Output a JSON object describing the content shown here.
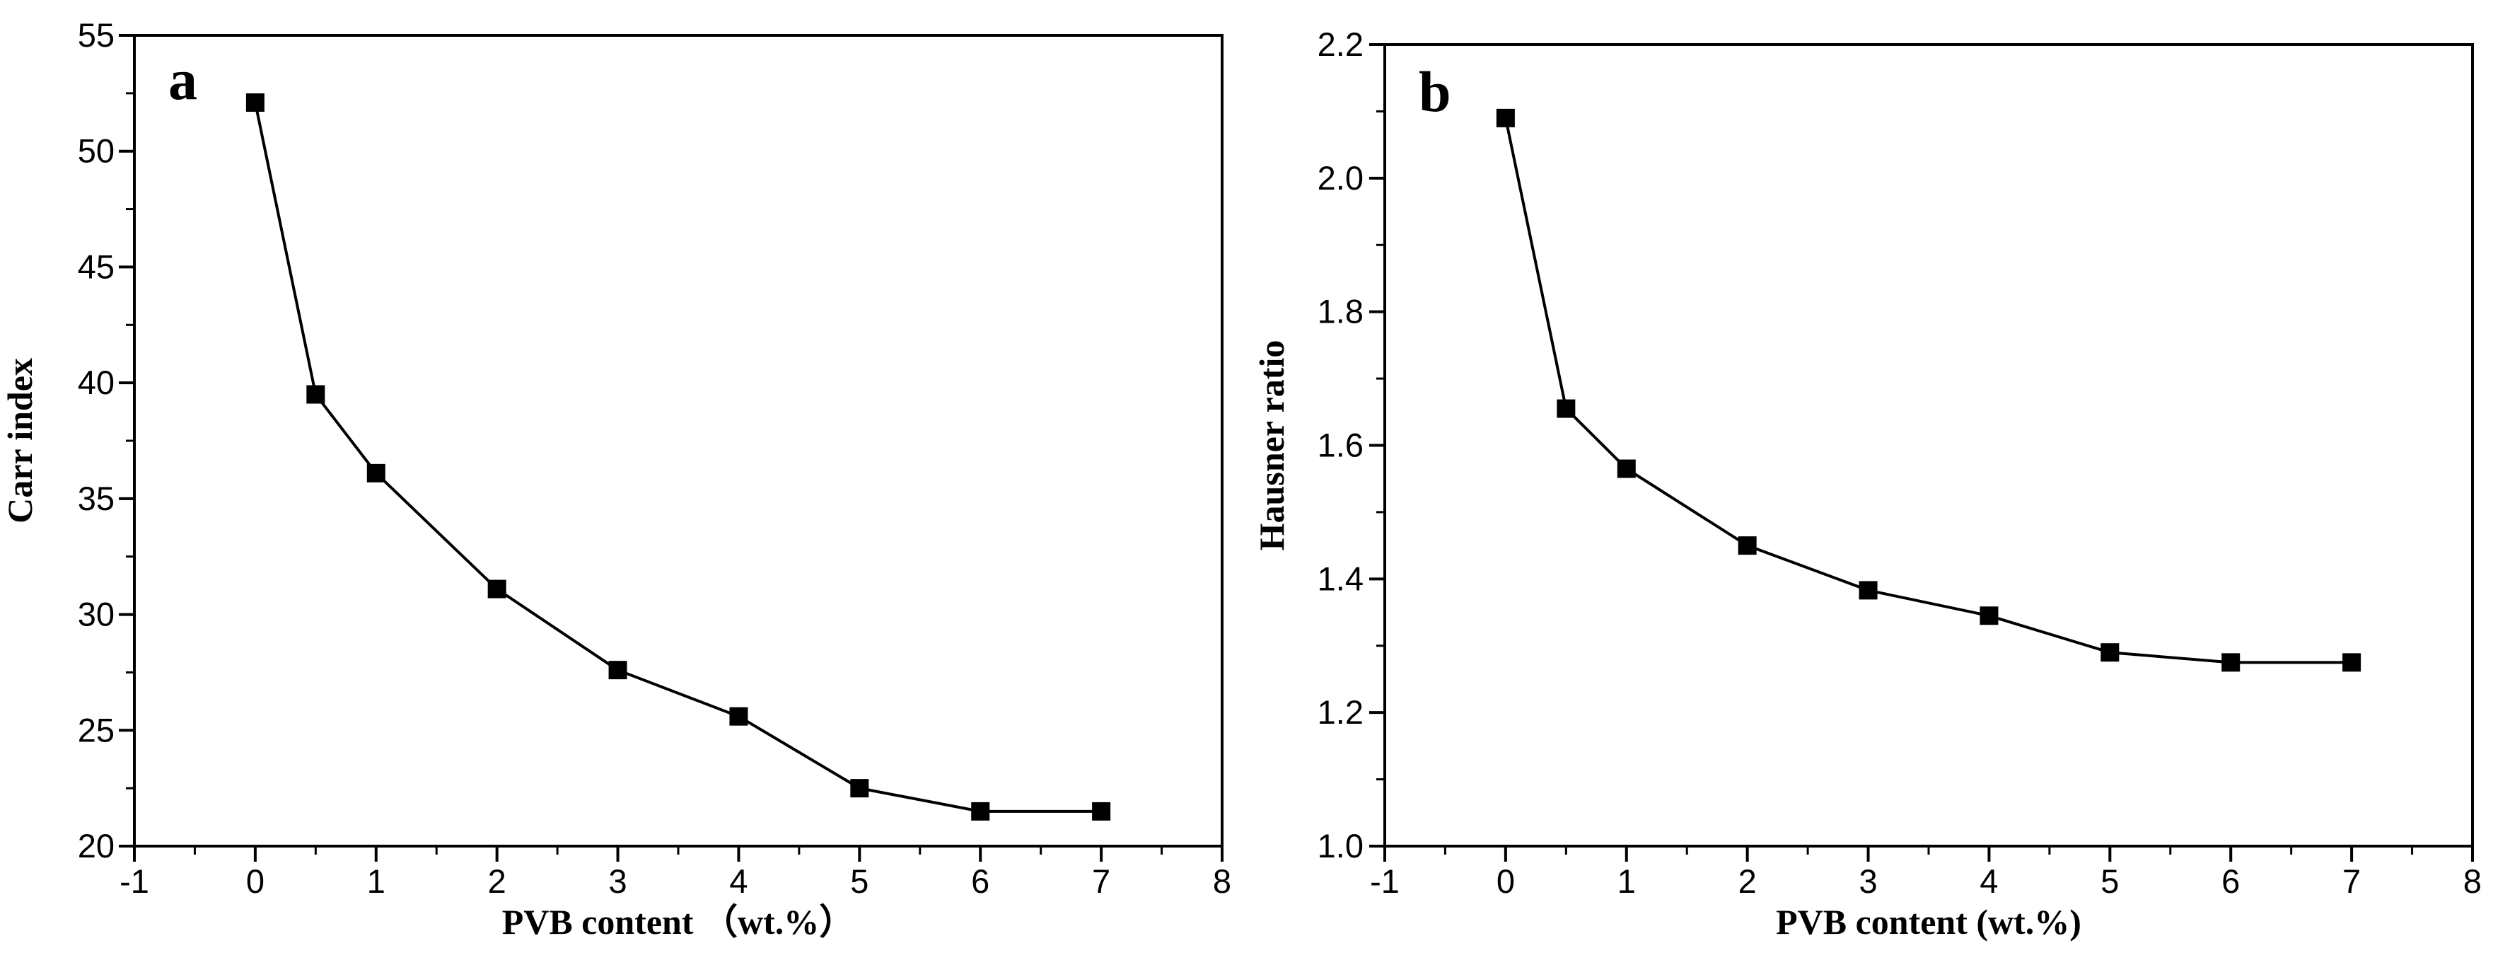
{
  "chart_data": [
    {
      "type": "line",
      "panel_label": "a",
      "xlabel": "PVB content （wt.%）",
      "ylabel": "Carr index",
      "xlim": [
        -1,
        8
      ],
      "ylim": [
        20,
        55
      ],
      "xticks": [
        -1,
        0,
        1,
        2,
        3,
        4,
        5,
        6,
        7,
        8
      ],
      "xtick_labels": [
        "-1",
        "0",
        "1",
        "2",
        "3",
        "4",
        "5",
        "6",
        "7",
        "8"
      ],
      "yticks": [
        20,
        25,
        30,
        35,
        40,
        45,
        50,
        55
      ],
      "ytick_labels": [
        "20",
        "25",
        "30",
        "35",
        "40",
        "45",
        "50",
        "55"
      ],
      "marker": "square",
      "color": "#000000",
      "grid": false,
      "series": [
        {
          "name": "Carr index",
          "x": [
            0,
            0.5,
            1,
            2,
            3,
            4,
            5,
            6,
            7
          ],
          "y": [
            52.1,
            39.5,
            36.1,
            31.1,
            27.6,
            25.6,
            22.5,
            21.5,
            21.5
          ]
        }
      ]
    },
    {
      "type": "line",
      "panel_label": "b",
      "xlabel": "PVB content (wt.%)",
      "ylabel": "Hausner ratio",
      "xlim": [
        -1,
        8
      ],
      "ylim": [
        1.0,
        2.2
      ],
      "xticks": [
        -1,
        0,
        1,
        2,
        3,
        4,
        5,
        6,
        7,
        8
      ],
      "xtick_labels": [
        "-1",
        "0",
        "1",
        "2",
        "3",
        "4",
        "5",
        "6",
        "7",
        "8"
      ],
      "yticks": [
        1.0,
        1.2,
        1.4,
        1.6,
        1.8,
        2.0,
        2.2
      ],
      "ytick_labels": [
        "1.0",
        "1.2",
        "1.4",
        "1.6",
        "1.8",
        "2.0",
        "2.2"
      ],
      "marker": "square",
      "color": "#000000",
      "grid": false,
      "series": [
        {
          "name": "Hausner ratio",
          "x": [
            0,
            0.5,
            1,
            2,
            3,
            4,
            5,
            6,
            7
          ],
          "y": [
            2.09,
            1.655,
            1.565,
            1.45,
            1.383,
            1.345,
            1.29,
            1.275,
            1.275
          ]
        }
      ]
    }
  ]
}
